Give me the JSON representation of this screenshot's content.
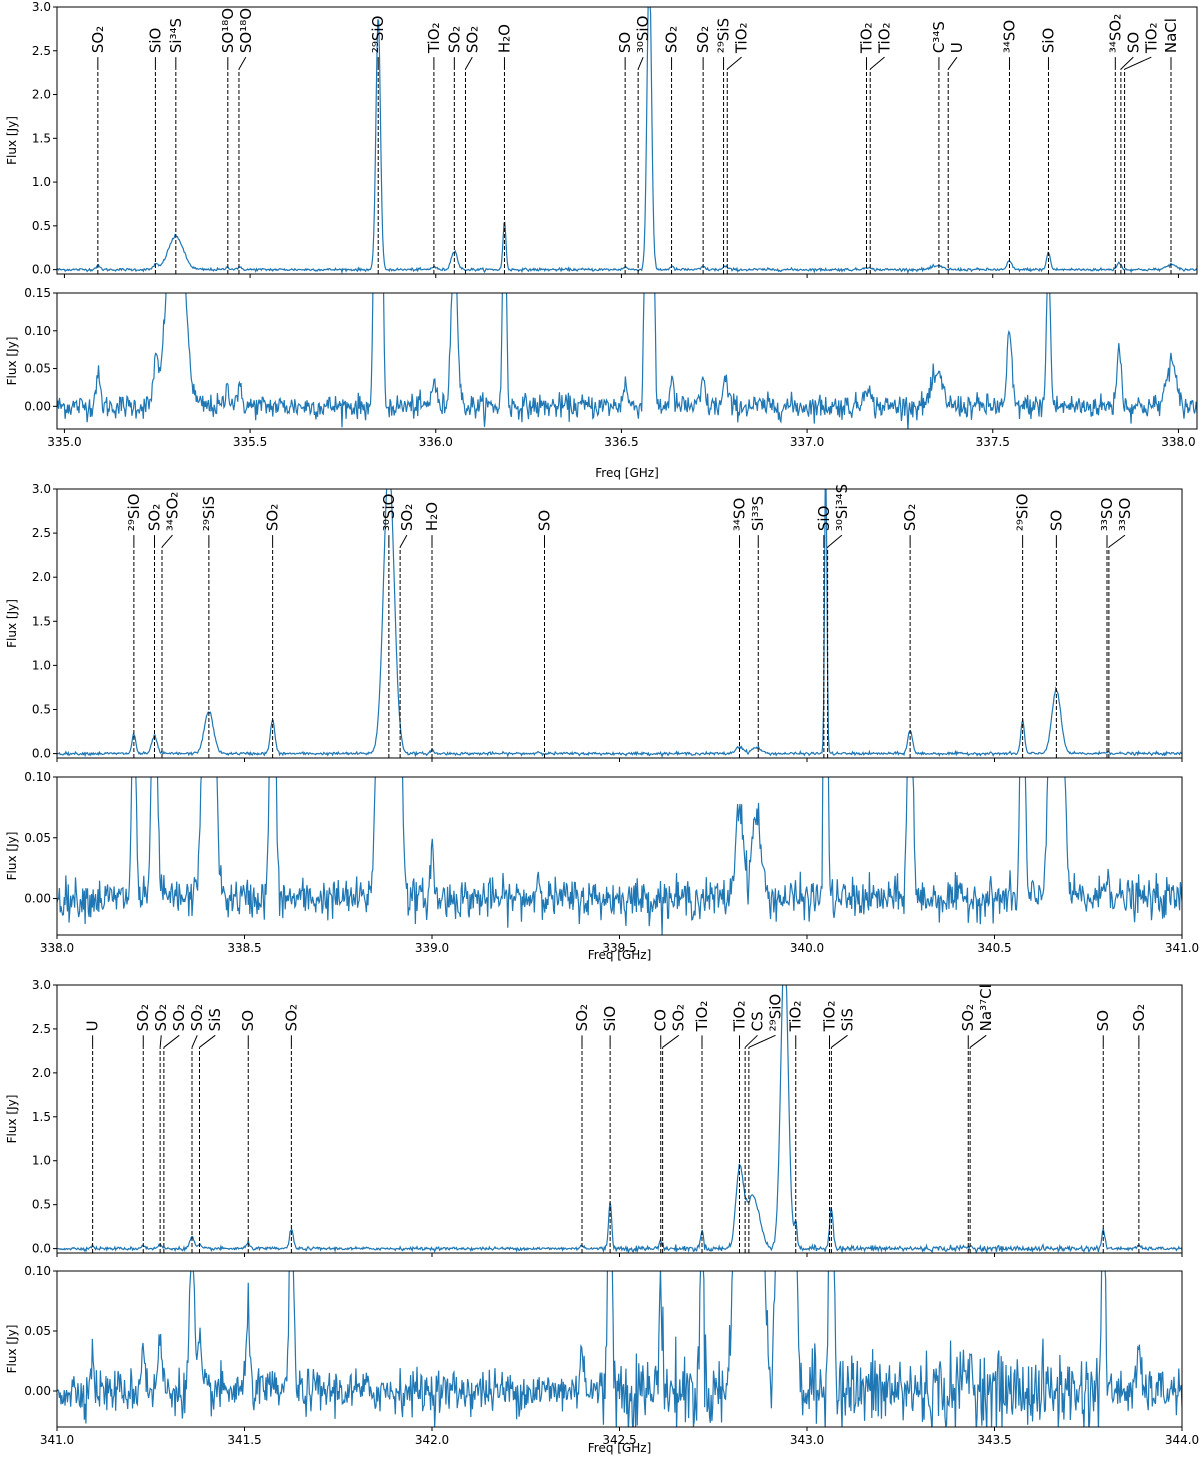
{
  "chart_data": [
    {
      "type": "line",
      "xlabel": "Freq [GHz]",
      "ylabel_top": "Flux [Jy]",
      "ylabel_bottom": "Flux [Jy]",
      "xlim": [
        334.98,
        338.05
      ],
      "xticks": [
        335.0,
        335.5,
        336.0,
        336.5,
        337.0,
        337.5,
        338.0
      ],
      "ylim_top": [
        -0.05,
        3.0
      ],
      "yticks_top": [
        0.0,
        0.5,
        1.0,
        1.5,
        2.0,
        2.5,
        3.0
      ],
      "ylim_bottom": [
        -0.03,
        0.15
      ],
      "yticks_bottom": [
        0.0,
        0.05,
        0.1,
        0.15
      ],
      "series_color": "#1f77b4",
      "peaks": [
        {
          "f": 335.09,
          "a": 0.04,
          "w": 0.006
        },
        {
          "f": 335.245,
          "a": 0.055,
          "w": 0.006
        },
        {
          "f": 335.3,
          "a": 0.38,
          "w": 0.02
        },
        {
          "f": 335.44,
          "a": 0.025,
          "w": 0.006
        },
        {
          "f": 335.47,
          "a": 0.02,
          "w": 0.008
        },
        {
          "f": 335.845,
          "a": 2.9,
          "w": 0.006
        },
        {
          "f": 335.995,
          "a": 0.035,
          "w": 0.006
        },
        {
          "f": 336.05,
          "a": 0.22,
          "w": 0.008
        },
        {
          "f": 336.185,
          "a": 0.55,
          "w": 0.004
        },
        {
          "f": 336.51,
          "a": 0.03,
          "w": 0.006
        },
        {
          "f": 336.575,
          "a": 3.5,
          "w": 0.006
        },
        {
          "f": 336.635,
          "a": 0.035,
          "w": 0.005
        },
        {
          "f": 336.72,
          "a": 0.035,
          "w": 0.005
        },
        {
          "f": 336.78,
          "a": 0.035,
          "w": 0.006
        },
        {
          "f": 337.16,
          "a": 0.03,
          "w": 0.008
        },
        {
          "f": 337.35,
          "a": 0.04,
          "w": 0.015
        },
        {
          "f": 337.545,
          "a": 0.1,
          "w": 0.006
        },
        {
          "f": 337.65,
          "a": 0.2,
          "w": 0.005
        },
        {
          "f": 337.84,
          "a": 0.08,
          "w": 0.006
        },
        {
          "f": 337.98,
          "a": 0.06,
          "w": 0.012
        }
      ],
      "lines": [
        {
          "f": 335.09,
          "label": "SO₂",
          "ly": 2.45
        },
        {
          "f": 335.245,
          "label": "SiO",
          "ly": 2.45
        },
        {
          "f": 335.3,
          "label": "Si³⁴S",
          "ly": 2.45
        },
        {
          "f": 335.44,
          "label": "SO¹⁸O",
          "ly": 2.45
        },
        {
          "f": 335.47,
          "label": "SO¹⁸O",
          "ly": 2.45
        },
        {
          "f": 335.845,
          "label": "²⁹SiO",
          "ly": 2.45
        },
        {
          "f": 335.995,
          "label": "TiO₂",
          "ly": 2.45
        },
        {
          "f": 336.05,
          "label": "SO₂",
          "ly": 2.45
        },
        {
          "f": 336.08,
          "label": "SO₂",
          "ly": 2.45
        },
        {
          "f": 336.185,
          "label": "H₂O",
          "ly": 2.45
        },
        {
          "f": 336.51,
          "label": "SO",
          "ly": 2.45
        },
        {
          "f": 336.545,
          "label": "³⁰SiO",
          "ly": 2.45
        },
        {
          "f": 336.635,
          "label": "SO₂",
          "ly": 2.45
        },
        {
          "f": 336.72,
          "label": "SO₂",
          "ly": 2.45
        },
        {
          "f": 336.775,
          "label": "²⁹SiS",
          "ly": 2.45
        },
        {
          "f": 336.785,
          "label": "TiO₂",
          "ly": 2.45
        },
        {
          "f": 337.16,
          "label": "TiO₂",
          "ly": 2.45
        },
        {
          "f": 337.17,
          "label": "TiO₂",
          "ly": 2.45
        },
        {
          "f": 337.355,
          "label": "C³⁴S",
          "ly": 2.45
        },
        {
          "f": 337.38,
          "label": "U",
          "ly": 2.45
        },
        {
          "f": 337.545,
          "label": "³⁴SO",
          "ly": 2.45
        },
        {
          "f": 337.65,
          "label": "SiO",
          "ly": 2.45
        },
        {
          "f": 337.83,
          "label": "³⁴SO₂",
          "ly": 2.45
        },
        {
          "f": 337.845,
          "label": "SO",
          "ly": 2.45
        },
        {
          "f": 337.855,
          "label": "TiO₂",
          "ly": 2.45
        },
        {
          "f": 337.98,
          "label": "NaCl",
          "ly": 2.45
        }
      ]
    },
    {
      "type": "line",
      "xlabel": "Freq [GHz]",
      "ylabel_top": "Flux [Jy]",
      "ylabel_bottom": "Flux [Jy]",
      "xlim": [
        338.0,
        341.0
      ],
      "xticks": [
        338.0,
        338.5,
        339.0,
        339.5,
        340.0,
        340.5,
        341.0
      ],
      "ylim_top": [
        -0.05,
        3.0
      ],
      "yticks_top": [
        0.0,
        0.5,
        1.0,
        1.5,
        2.0,
        2.5,
        3.0
      ],
      "ylim_bottom": [
        -0.03,
        0.1
      ],
      "yticks_bottom": [
        0.0,
        0.05,
        0.1
      ],
      "series_color": "#1f77b4",
      "peaks": [
        {
          "f": 338.205,
          "a": 0.22,
          "w": 0.005
        },
        {
          "f": 338.26,
          "a": 0.2,
          "w": 0.007
        },
        {
          "f": 338.405,
          "a": 0.48,
          "w": 0.012
        },
        {
          "f": 338.575,
          "a": 0.38,
          "w": 0.006
        },
        {
          "f": 338.885,
          "a": 3.3,
          "w": 0.014
        },
        {
          "f": 339.0,
          "a": 0.045,
          "w": 0.004
        },
        {
          "f": 339.285,
          "a": 0.015,
          "w": 0.008
        },
        {
          "f": 339.82,
          "a": 0.08,
          "w": 0.01
        },
        {
          "f": 339.865,
          "a": 0.07,
          "w": 0.012
        },
        {
          "f": 340.05,
          "a": 3.5,
          "w": 0.003
        },
        {
          "f": 340.275,
          "a": 0.27,
          "w": 0.006
        },
        {
          "f": 340.575,
          "a": 0.37,
          "w": 0.005
        },
        {
          "f": 340.665,
          "a": 0.72,
          "w": 0.012
        },
        {
          "f": 340.8,
          "a": 0.02,
          "w": 0.008
        }
      ],
      "lines": [
        {
          "f": 338.205,
          "label": "²⁹SiO",
          "ly": 2.5
        },
        {
          "f": 338.26,
          "label": "SO₂",
          "ly": 2.5
        },
        {
          "f": 338.28,
          "label": "³⁴SO₂",
          "ly": 2.5
        },
        {
          "f": 338.405,
          "label": "²⁹SiS",
          "ly": 2.5
        },
        {
          "f": 338.575,
          "label": "SO₂",
          "ly": 2.5
        },
        {
          "f": 338.885,
          "label": "³⁰SiO",
          "ly": 2.5
        },
        {
          "f": 338.915,
          "label": "SO₂",
          "ly": 2.5
        },
        {
          "f": 339.0,
          "label": "H₂O",
          "ly": 2.5
        },
        {
          "f": 339.3,
          "label": "SO",
          "ly": 2.5
        },
        {
          "f": 339.82,
          "label": "³⁴SO",
          "ly": 2.5
        },
        {
          "f": 339.87,
          "label": "Si³³S",
          "ly": 2.5
        },
        {
          "f": 340.045,
          "label": "SiO",
          "ly": 2.5
        },
        {
          "f": 340.055,
          "label": "³⁰Si³⁴S",
          "ly": 2.5
        },
        {
          "f": 340.275,
          "label": "SO₂",
          "ly": 2.5
        },
        {
          "f": 340.575,
          "label": "²⁹SiO",
          "ly": 2.5
        },
        {
          "f": 340.665,
          "label": "SO",
          "ly": 2.5
        },
        {
          "f": 340.8,
          "label": "³³SO",
          "ly": 2.5
        },
        {
          "f": 340.805,
          "label": "³³SO",
          "ly": 2.5
        }
      ]
    },
    {
      "type": "line",
      "xlabel": "Freq [GHz]",
      "ylabel_top": "Flux [Jy]",
      "ylabel_bottom": "Flux [Jy]",
      "xlim": [
        341.0,
        344.0
      ],
      "xticks": [
        341.0,
        341.5,
        342.0,
        342.5,
        343.0,
        343.5,
        344.0
      ],
      "ylim_top": [
        -0.05,
        3.0
      ],
      "yticks_top": [
        0.0,
        0.5,
        1.0,
        1.5,
        2.0,
        2.5,
        3.0
      ],
      "ylim_bottom": [
        -0.03,
        0.1
      ],
      "yticks_bottom": [
        0.0,
        0.05,
        0.1
      ],
      "series_color": "#1f77b4",
      "peaks": [
        {
          "f": 341.095,
          "a": 0.03,
          "w": 0.004
        },
        {
          "f": 341.23,
          "a": 0.04,
          "w": 0.005
        },
        {
          "f": 341.275,
          "a": 0.045,
          "w": 0.005
        },
        {
          "f": 341.36,
          "a": 0.13,
          "w": 0.006
        },
        {
          "f": 341.38,
          "a": 0.035,
          "w": 0.005
        },
        {
          "f": 341.51,
          "a": 0.065,
          "w": 0.005
        },
        {
          "f": 341.625,
          "a": 0.22,
          "w": 0.005
        },
        {
          "f": 342.4,
          "a": 0.04,
          "w": 0.005
        },
        {
          "f": 342.475,
          "a": 0.55,
          "w": 0.004
        },
        {
          "f": 342.61,
          "a": 0.1,
          "w": 0.004
        },
        {
          "f": 342.72,
          "a": 0.2,
          "w": 0.004
        },
        {
          "f": 342.82,
          "a": 0.85,
          "w": 0.01
        },
        {
          "f": 342.855,
          "a": 0.6,
          "w": 0.018
        },
        {
          "f": 342.94,
          "a": 3.4,
          "w": 0.01
        },
        {
          "f": 342.97,
          "a": 0.25,
          "w": 0.004
        },
        {
          "f": 343.065,
          "a": 0.45,
          "w": 0.005
        },
        {
          "f": 343.43,
          "a": 0.02,
          "w": 0.01
        },
        {
          "f": 343.79,
          "a": 0.22,
          "w": 0.004
        },
        {
          "f": 343.885,
          "a": 0.04,
          "w": 0.004
        }
      ],
      "lines": [
        {
          "f": 341.095,
          "label": "U",
          "ly": 2.45
        },
        {
          "f": 341.23,
          "label": "SO₂",
          "ly": 2.45
        },
        {
          "f": 341.275,
          "label": "SO₂",
          "ly": 2.45
        },
        {
          "f": 341.285,
          "label": "SO₂",
          "ly": 2.45
        },
        {
          "f": 341.36,
          "label": "SO₂",
          "ly": 2.45
        },
        {
          "f": 341.38,
          "label": "SiS",
          "ly": 2.45
        },
        {
          "f": 341.51,
          "label": "SO",
          "ly": 2.45
        },
        {
          "f": 341.625,
          "label": "SO₂",
          "ly": 2.45
        },
        {
          "f": 342.4,
          "label": "SO₂",
          "ly": 2.45
        },
        {
          "f": 342.475,
          "label": "SiO",
          "ly": 2.45
        },
        {
          "f": 342.61,
          "label": "CO",
          "ly": 2.45
        },
        {
          "f": 342.615,
          "label": "SO₂",
          "ly": 2.45
        },
        {
          "f": 342.72,
          "label": "TiO₂",
          "ly": 2.45
        },
        {
          "f": 342.82,
          "label": "TiO₂",
          "ly": 2.45
        },
        {
          "f": 342.835,
          "label": "CS",
          "ly": 2.45
        },
        {
          "f": 342.845,
          "label": "²⁹SiO",
          "ly": 2.45
        },
        {
          "f": 342.97,
          "label": "TiO₂",
          "ly": 2.45
        },
        {
          "f": 343.06,
          "label": "TiO₂",
          "ly": 2.45
        },
        {
          "f": 343.065,
          "label": "SiS",
          "ly": 2.45
        },
        {
          "f": 343.43,
          "label": "SO₂",
          "ly": 2.45
        },
        {
          "f": 343.435,
          "label": "Na³⁷Cl",
          "ly": 2.45
        },
        {
          "f": 343.79,
          "label": "SO",
          "ly": 2.45
        },
        {
          "f": 343.885,
          "label": "SO₂",
          "ly": 2.45
        }
      ]
    }
  ]
}
